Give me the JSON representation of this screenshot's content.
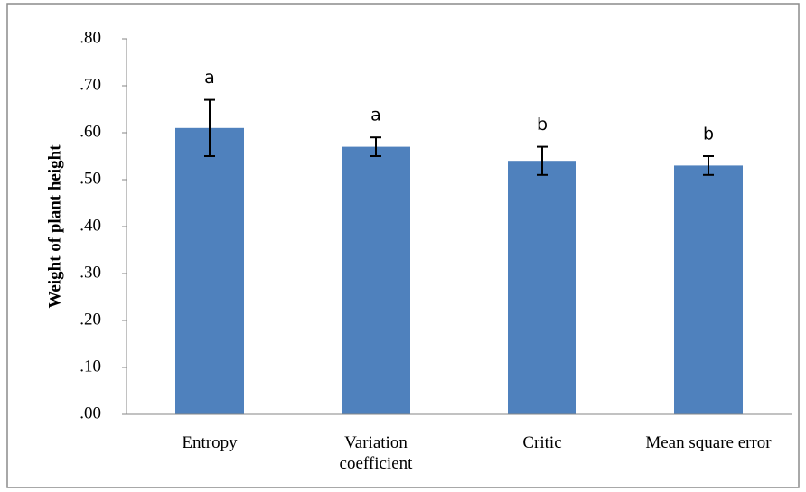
{
  "chart_data": {
    "type": "bar",
    "y_label": "Weight of plant height",
    "categories": [
      "Entropy",
      "Variation coefficient",
      "Critic",
      "Mean square error"
    ],
    "series": [
      {
        "color": "#4f81bd",
        "values": [
          0.61,
          0.57,
          0.54,
          0.53
        ],
        "errors": [
          0.06,
          0.02,
          0.03,
          0.02
        ]
      }
    ],
    "annotations": [
      "a",
      "a",
      "b",
      "b"
    ],
    "ylim": [
      0,
      0.8
    ],
    "yticks": [
      {
        "value": 0,
        "label": ".00"
      },
      {
        "value": 0.1,
        "label": ".10"
      },
      {
        "value": 0.2,
        "label": ".20"
      },
      {
        "value": 0.3,
        "label": ".30"
      },
      {
        "value": 0.4,
        "label": ".40"
      },
      {
        "value": 0.5,
        "label": ".50"
      },
      {
        "value": 0.6,
        "label": ".60"
      },
      {
        "value": 0.7,
        "label": ".70"
      },
      {
        "value": 0.8,
        "label": ".80"
      }
    ],
    "grid": false
  }
}
